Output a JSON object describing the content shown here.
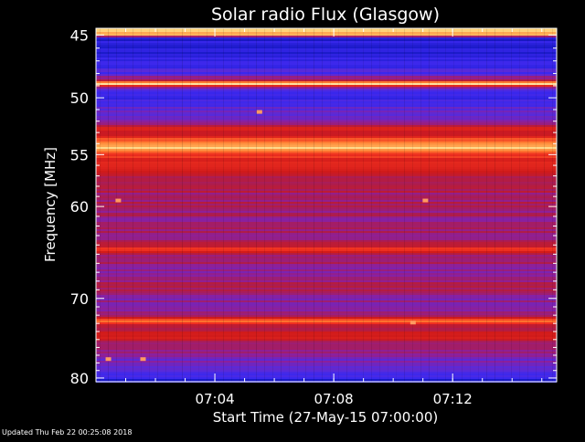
{
  "chart_data": {
    "type": "heatmap",
    "title": "Solar radio Flux (Glasgow)",
    "xlabel": "Start Time (27-May-15 07:00:00)",
    "ylabel": "Frequency [MHz]",
    "x_unit": "time",
    "xlim": [
      "07:00:00",
      "07:15:30"
    ],
    "x_ticks": [
      "07:04",
      "07:08",
      "07:12"
    ],
    "y_scale": "log",
    "ylim": [
      44.5,
      80.5
    ],
    "y_ticks": [
      45,
      50,
      55,
      60,
      70,
      80
    ],
    "y_tick_labels": [
      "45",
      "50",
      "55",
      "60",
      "70",
      "80"
    ],
    "colormap": [
      "#0a0a55",
      "#1a1ac8",
      "#3a28ee",
      "#5a2ad8",
      "#8a20a0",
      "#b01c48",
      "#d01a1a",
      "#f03020",
      "#ff7a30",
      "#ffd070",
      "#ffffff"
    ],
    "intensity_profile": [
      {
        "f": 45.0,
        "v": 0.9
      },
      {
        "f": 45.2,
        "v": 0.15
      },
      {
        "f": 46.0,
        "v": 0.13
      },
      {
        "f": 47.0,
        "v": 0.2
      },
      {
        "f": 48.0,
        "v": 0.25
      },
      {
        "f": 48.6,
        "v": 0.55
      },
      {
        "f": 48.8,
        "v": 1.0
      },
      {
        "f": 49.0,
        "v": 0.7
      },
      {
        "f": 49.3,
        "v": 0.25
      },
      {
        "f": 50.0,
        "v": 0.2
      },
      {
        "f": 51.0,
        "v": 0.3
      },
      {
        "f": 52.0,
        "v": 0.35
      },
      {
        "f": 52.7,
        "v": 0.7
      },
      {
        "f": 53.2,
        "v": 0.55
      },
      {
        "f": 53.8,
        "v": 0.8
      },
      {
        "f": 54.4,
        "v": 0.88
      },
      {
        "f": 55.0,
        "v": 0.72
      },
      {
        "f": 56.0,
        "v": 0.6
      },
      {
        "f": 57.0,
        "v": 0.55
      },
      {
        "f": 58.0,
        "v": 0.5
      },
      {
        "f": 60.0,
        "v": 0.46
      },
      {
        "f": 62.0,
        "v": 0.44
      },
      {
        "f": 64.0,
        "v": 0.5
      },
      {
        "f": 64.5,
        "v": 0.78
      },
      {
        "f": 65.0,
        "v": 0.5
      },
      {
        "f": 67.0,
        "v": 0.42
      },
      {
        "f": 68.5,
        "v": 0.5
      },
      {
        "f": 70.0,
        "v": 0.4
      },
      {
        "f": 72.0,
        "v": 0.45
      },
      {
        "f": 72.8,
        "v": 0.8
      },
      {
        "f": 73.5,
        "v": 0.45
      },
      {
        "f": 74.5,
        "v": 0.62
      },
      {
        "f": 75.5,
        "v": 0.45
      },
      {
        "f": 77.0,
        "v": 0.38
      },
      {
        "f": 78.5,
        "v": 0.32
      },
      {
        "f": 79.5,
        "v": 0.22
      },
      {
        "f": 80.3,
        "v": 0.15
      }
    ],
    "bright_spots": [
      {
        "t": "07:00:45",
        "f": 59.4
      },
      {
        "t": "07:11:05",
        "f": 59.4
      },
      {
        "t": "07:05:30",
        "f": 51.2
      },
      {
        "t": "07:00:25",
        "f": 77.5
      },
      {
        "t": "07:01:35",
        "f": 77.5
      },
      {
        "t": "07:10:40",
        "f": 72.9
      }
    ]
  },
  "footer": {
    "updated": "Updated Thu Feb 22 00:25:08 2018"
  }
}
